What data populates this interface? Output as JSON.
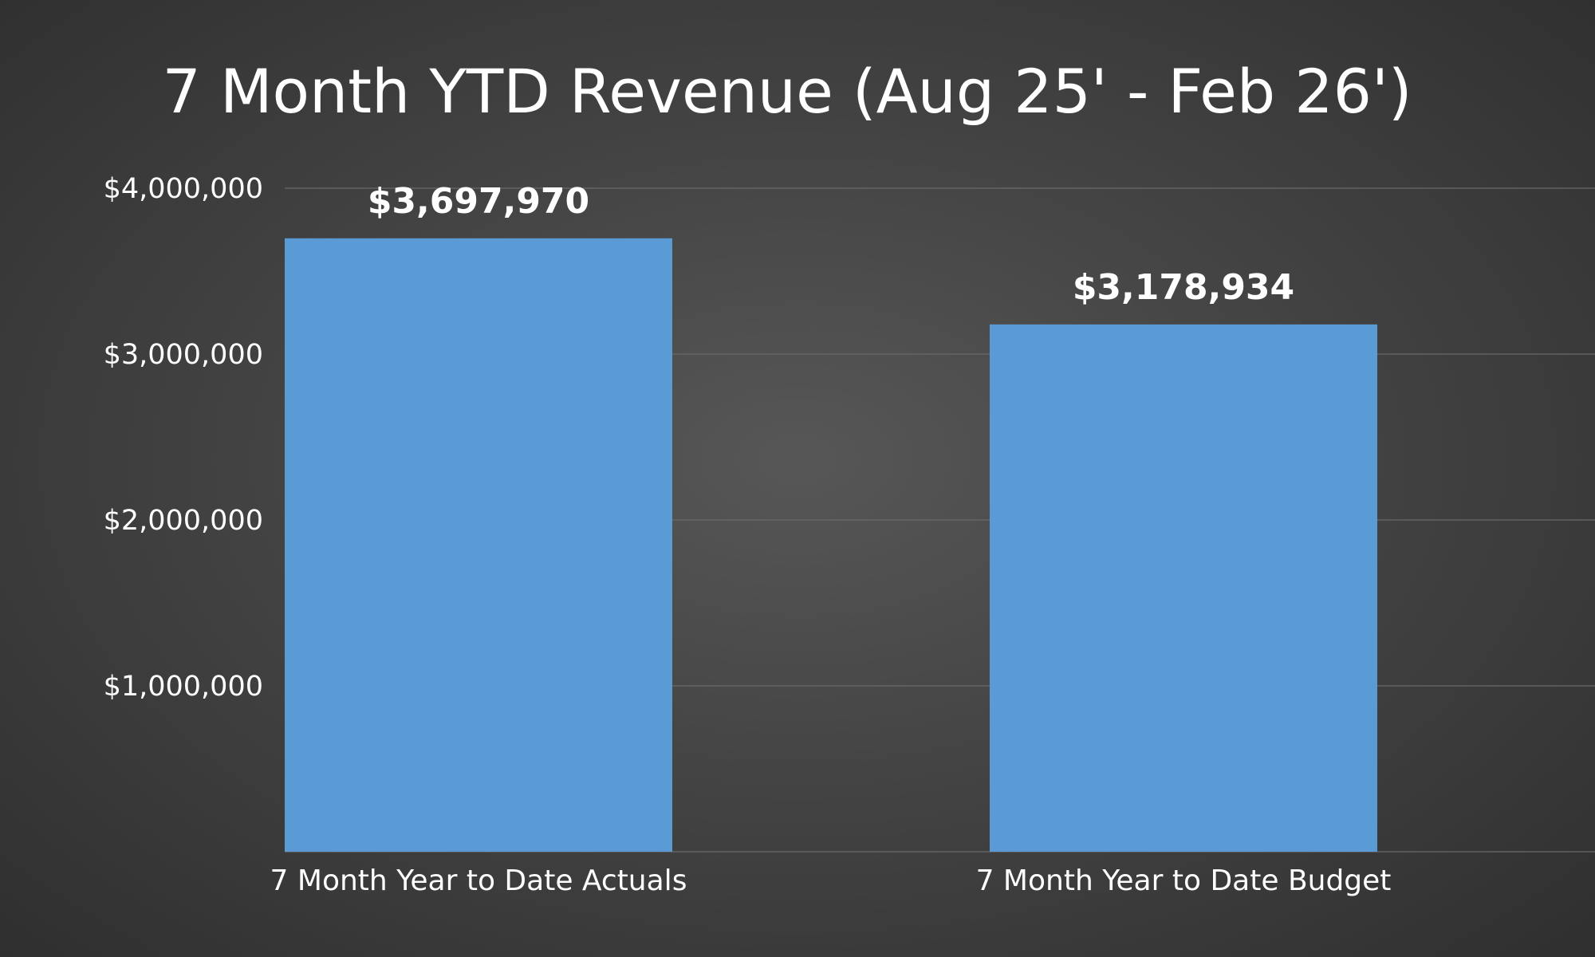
{
  "chart_data": {
    "type": "bar",
    "title": "7 Month YTD Revenue (Aug 25' - Feb 26')",
    "categories": [
      "7 Month Year to Date Actuals",
      "7 Month Year to Date Budget"
    ],
    "values": [
      3697970,
      3178934
    ],
    "data_labels": [
      "$3,697,970",
      "$3,178,934"
    ],
    "xlabel": "",
    "ylabel": "",
    "ylim": [
      0,
      4000000
    ],
    "yticks": [
      1000000,
      2000000,
      3000000,
      4000000
    ],
    "ytick_labels": [
      "$1,000,000",
      "$2,000,000",
      "$3,000,000",
      "$4,000,000"
    ],
    "grid": true,
    "legend": "none",
    "bar_color": "#5b9bd5",
    "grid_color": "#6a6a6a"
  }
}
